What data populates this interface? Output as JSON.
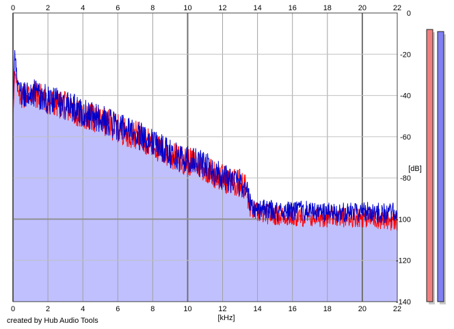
{
  "chart_data": {
    "type": "line",
    "xlabel": "[kHz]",
    "ylabel": "[dB]",
    "xlim": [
      0,
      22
    ],
    "ylim": [
      -140,
      0
    ],
    "xticks": [
      "0",
      "2",
      "4",
      "6",
      "8",
      "10",
      "12",
      "14",
      "16",
      "18",
      "20",
      "22"
    ],
    "yticks": [
      "0",
      "-20",
      "-40",
      "-60",
      "-80",
      "-100",
      "-120",
      "-140"
    ],
    "grid": true,
    "series": [
      {
        "color": "#ff0000",
        "x": [
          0,
          0.1,
          0.3,
          0.6,
          1,
          1.5,
          2,
          2.5,
          3,
          3.5,
          4,
          4.5,
          5,
          5.5,
          6,
          6.5,
          7,
          7.5,
          8,
          8.5,
          9,
          9.5,
          10,
          10.5,
          11,
          11.5,
          12,
          12.5,
          13,
          13.3,
          13.6,
          14,
          15,
          16,
          17,
          18,
          19,
          20,
          21,
          22
        ],
        "values": [
          -48,
          -30,
          -38,
          -40,
          -39,
          -40,
          -43,
          -44,
          -45,
          -47,
          -50,
          -51,
          -52,
          -54,
          -56,
          -58,
          -59,
          -61,
          -64,
          -67,
          -69,
          -71,
          -72,
          -73,
          -75,
          -78,
          -80,
          -82,
          -83,
          -84,
          -95,
          -97,
          -98,
          -99,
          -99,
          -99,
          -99,
          -99,
          -100,
          -101
        ]
      },
      {
        "color": "#0000cc",
        "x": [
          0,
          0.1,
          0.3,
          0.6,
          1,
          1.5,
          2,
          2.5,
          3,
          3.5,
          4,
          4.5,
          5,
          5.5,
          6,
          6.5,
          7,
          7.5,
          8,
          8.5,
          9,
          9.5,
          10,
          10.5,
          11,
          11.5,
          12,
          12.5,
          13,
          13.3,
          13.6,
          14,
          15,
          16,
          17,
          18,
          19,
          20,
          21,
          22
        ],
        "values": [
          -45,
          -19,
          -36,
          -39,
          -38,
          -40,
          -42,
          -43,
          -45,
          -46,
          -48,
          -50,
          -51,
          -53,
          -55,
          -57,
          -59,
          -60,
          -63,
          -65,
          -68,
          -70,
          -71,
          -72,
          -74,
          -77,
          -79,
          -81,
          -82,
          -84,
          -93,
          -95,
          -96,
          -96,
          -96,
          -97,
          -97,
          -96,
          -97,
          -97
        ]
      }
    ],
    "fill_color": "#c0c0ff",
    "level_meters": [
      {
        "color": "#f08080",
        "level_db": -8
      },
      {
        "color": "#8080f0",
        "level_db": -9
      }
    ]
  },
  "footer": {
    "text": "created by Hub Audio Tools"
  }
}
